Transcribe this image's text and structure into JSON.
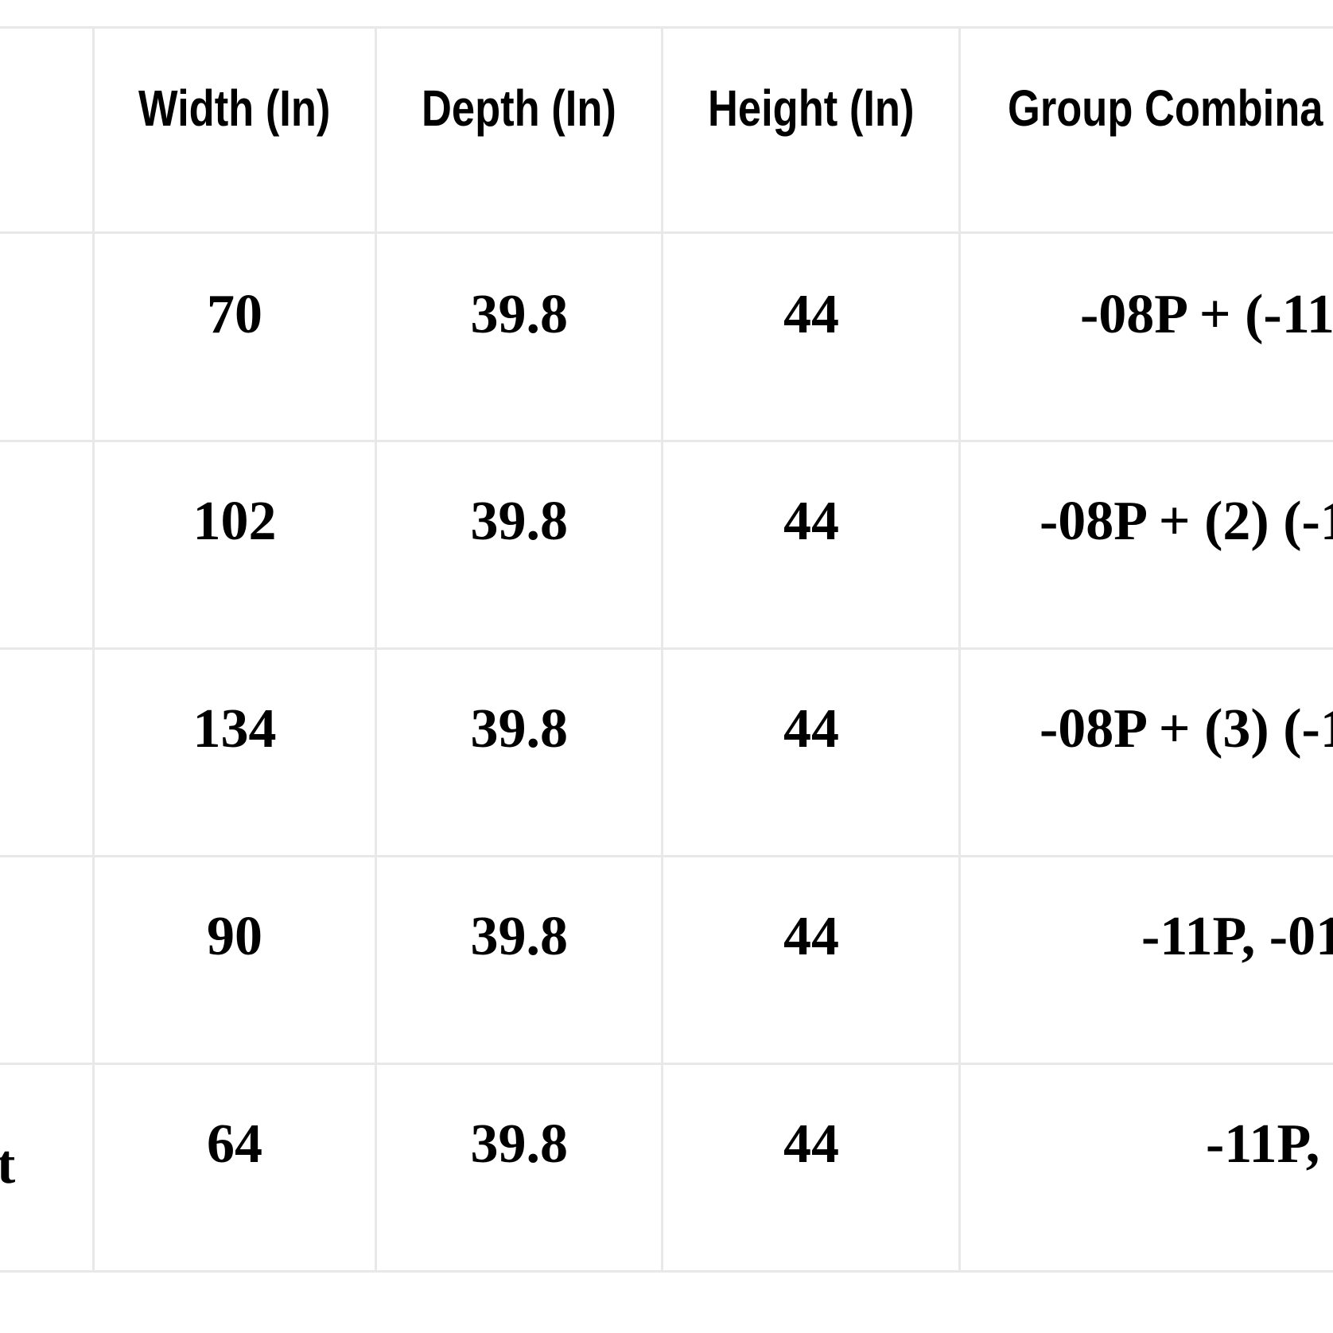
{
  "table": {
    "header": [
      "Width (In)",
      "Depth (In)",
      "Height (In)",
      "Group Combina"
    ],
    "rows": [
      {
        "cells": [
          70,
          39.8,
          44,
          "-08P + (-11"
        ]
      },
      {
        "cells": [
          102,
          39.8,
          44,
          "-08P + (2) (-1"
        ]
      },
      {
        "cells": [
          134,
          39.8,
          44,
          "-08P + (3) (-1"
        ]
      },
      {
        "cells": [
          90,
          39.8,
          44,
          "-11P, -01"
        ]
      },
      {
        "label": "t",
        "cells": [
          64,
          39.8,
          44,
          "-11P, "
        ]
      }
    ]
  }
}
